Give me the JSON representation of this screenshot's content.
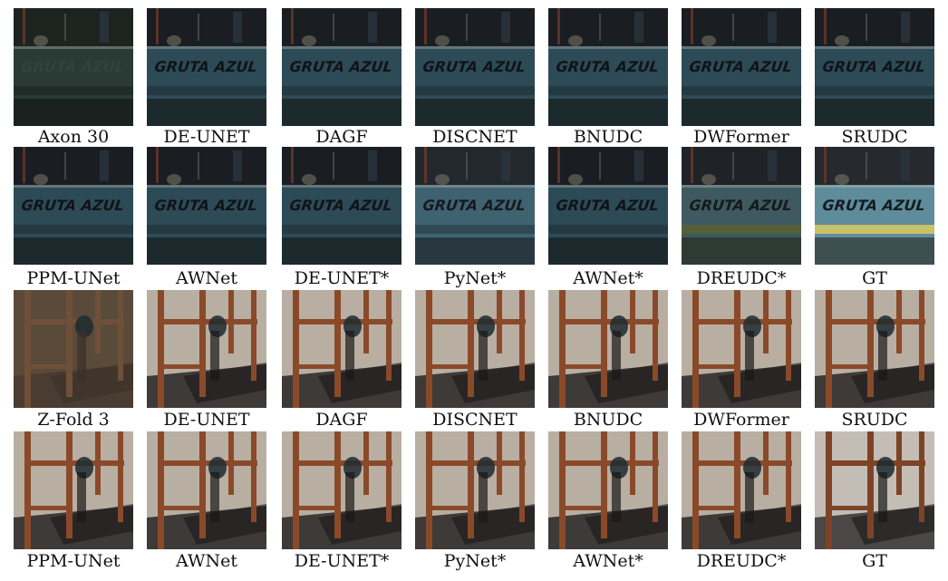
{
  "rows": [
    {
      "scene": "boat",
      "items": [
        {
          "caption": "Axon 30",
          "variant": "axon"
        },
        {
          "caption": "DE-UNET",
          "variant": "dark"
        },
        {
          "caption": "DAGF",
          "variant": "dark"
        },
        {
          "caption": "DISCNET",
          "variant": "dark"
        },
        {
          "caption": "BNUDC",
          "variant": "dark"
        },
        {
          "caption": "DWFormer",
          "variant": "dark"
        },
        {
          "caption": "SRUDC",
          "variant": "dark"
        }
      ]
    },
    {
      "scene": "boat",
      "items": [
        {
          "caption": "PPM-UNet",
          "variant": "dark"
        },
        {
          "caption": "AWNet",
          "variant": "dark"
        },
        {
          "caption": "DE-UNET*",
          "variant": "dark"
        },
        {
          "caption": "PyNet*",
          "variant": "light"
        },
        {
          "caption": "AWNet*",
          "variant": "dark"
        },
        {
          "caption": "DREUDC*",
          "variant": "warm"
        },
        {
          "caption": "GT",
          "variant": "gt"
        }
      ]
    },
    {
      "scene": "chair",
      "items": [
        {
          "caption": "Z-Fold 3",
          "variant": "zfold"
        },
        {
          "caption": "DE-UNET",
          "variant": "normal"
        },
        {
          "caption": "DAGF",
          "variant": "normal"
        },
        {
          "caption": "DISCNET",
          "variant": "normal"
        },
        {
          "caption": "BNUDC",
          "variant": "normal"
        },
        {
          "caption": "DWFormer",
          "variant": "normal"
        },
        {
          "caption": "SRUDC",
          "variant": "normal"
        }
      ]
    },
    {
      "scene": "chair",
      "items": [
        {
          "caption": "PPM-UNet",
          "variant": "normal"
        },
        {
          "caption": "AWNet",
          "variant": "normal"
        },
        {
          "caption": "DE-UNET*",
          "variant": "normal"
        },
        {
          "caption": "PyNet*",
          "variant": "normal"
        },
        {
          "caption": "AWNet*",
          "variant": "normal"
        },
        {
          "caption": "DREUDC*",
          "variant": "normal"
        },
        {
          "caption": "GT",
          "variant": "gtchair"
        }
      ]
    }
  ],
  "boat_text": "GRUTA AZUL",
  "palettes": {
    "boat": {
      "axon": {
        "top": "#1d2420",
        "hull": "#2a3a35",
        "band": "#1f2d2a",
        "text": "#36403c",
        "bottom": "#1a221f"
      },
      "dark": {
        "top": "#1a1e22",
        "hull": "#2d4a57",
        "band": "#243a43",
        "text": "#101418",
        "bottom": "#1c2a2e"
      },
      "light": {
        "top": "#23282c",
        "hull": "#3f6270",
        "band": "#2f4a55",
        "text": "#151a1e",
        "bottom": "#28383e"
      },
      "warm": {
        "top": "#1f2226",
        "hull": "#3e5a60",
        "band": "#55603a",
        "text": "#141a1c",
        "bottom": "#2e3a34"
      },
      "gt": {
        "top": "#262a2e",
        "hull": "#5f8c9a",
        "band": "#c9c06a",
        "text": "#141c22",
        "bottom": "#3d4f50"
      }
    },
    "chair": {
      "zfold": {
        "wall": "#5a4a3a",
        "floor": "#4a3c30",
        "wood": "#6e5038",
        "shadow": "#3a3028"
      },
      "normal": {
        "wall": "#b9aea2",
        "floor": "#3d3a38",
        "wood": "#8a4a2a",
        "shadow": "#1a1818"
      },
      "gtchair": {
        "wall": "#c3bdb5",
        "floor": "#4a4746",
        "wood": "#7e4327",
        "shadow": "#1a1918"
      }
    }
  }
}
